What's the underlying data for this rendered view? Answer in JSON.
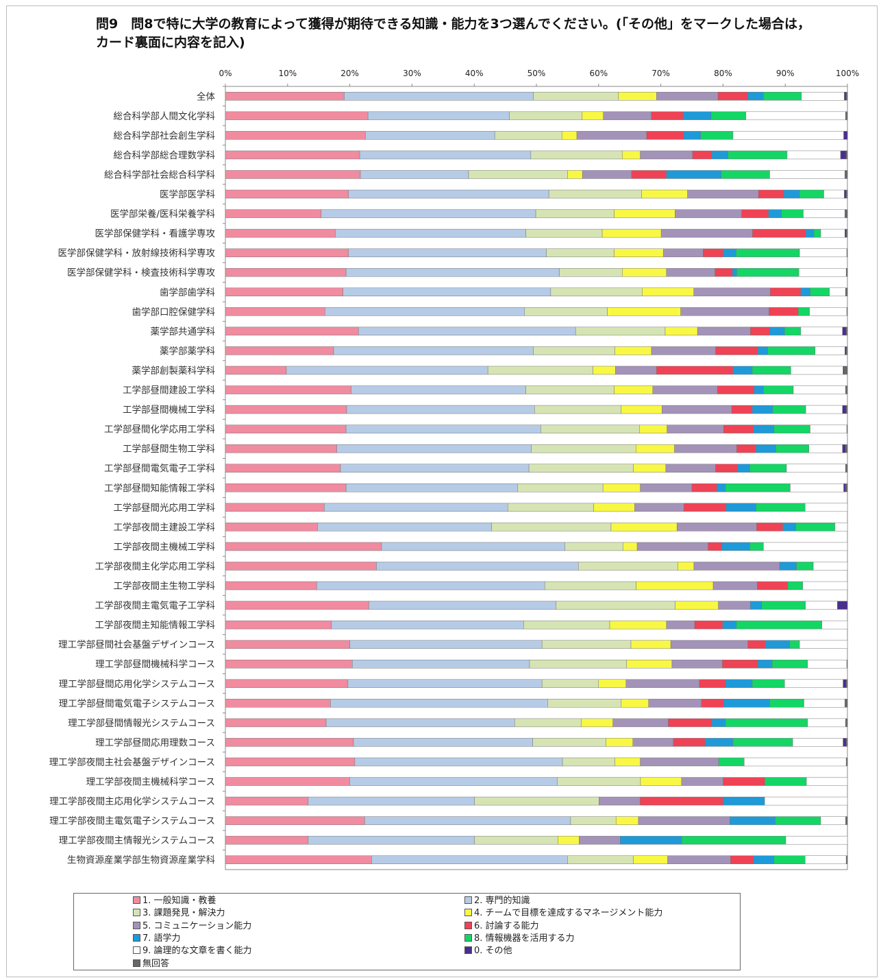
{
  "title": "問9　問8で特に大学の教育によって獲得が期待できる知識・能力を3つ選んでください。(「その他」をマークした場合は，\nカード裏面に内容を記入)",
  "chart_data": {
    "type": "bar",
    "orientation": "horizontal",
    "stacked": "percent",
    "title": "問9　問8で特に大学の教育によって獲得が期待できる知識・能力を3つ選んでください。(「その他」をマークした場合は，カード裏面に内容を記入)",
    "xlim": [
      0,
      100
    ],
    "x_ticks": [
      "0%",
      "10%",
      "20%",
      "30%",
      "40%",
      "50%",
      "60%",
      "70%",
      "80%",
      "90%",
      "100%"
    ],
    "grid": false,
    "legend_position": "bottom",
    "categories": [
      "全体",
      "総合科学部人間文化学科",
      "総合科学部社会創生学科",
      "総合科学部総合理数学科",
      "総合科学部社会総合科学科",
      "医学部医学科",
      "医学部栄養/医科栄養学科",
      "医学部保健学科・看護学専攻",
      "医学部保健学科・放射線技術科学専攻",
      "医学部保健学科・検査技術科学専攻",
      "歯学部歯学科",
      "歯学部口腔保健学科",
      "薬学部共通学科",
      "薬学部薬学科",
      "薬学部創製薬科学科",
      "工学部昼間建設工学科",
      "工学部昼間機械工学科",
      "工学部昼間化学応用工学科",
      "工学部昼間生物工学科",
      "工学部昼間電気電子工学科",
      "工学部昼間知能情報工学科",
      "工学部昼間光応用工学科",
      "工学部夜間主建設工学科",
      "工学部夜間主機械工学科",
      "工学部夜間主化学応用工学科",
      "工学部夜間主生物工学科",
      "工学部夜間主電気電子工学科",
      "工学部夜間主知能情報工学科",
      "理工学部昼間社会基盤デザインコース",
      "理工学部昼間機械科学コース",
      "理工学部昼間応用化学システムコース",
      "理工学部昼間電気電子システムコース",
      "理工学部昼間情報光システムコース",
      "理工学部昼間応用理数コース",
      "理工学部夜間主社会基盤デザインコース",
      "理工学部夜間主機械科学コース",
      "理工学部夜間主応用化学システムコース",
      "理工学部夜間主電気電子システムコース",
      "理工学部夜間主情報光システムコース",
      "生物資源産業学部生物資源産業学科"
    ],
    "series": [
      {
        "name": "1. 一般知識・教養",
        "color": "#f08ba0",
        "values": [
          19.1,
          22.9,
          22.5,
          21.6,
          21.7,
          19.8,
          15.4,
          17.7,
          19.8,
          19.4,
          18.9,
          16.0,
          21.4,
          17.4,
          9.8,
          20.2,
          19.5,
          19.4,
          17.9,
          18.5,
          19.4,
          15.9,
          14.8,
          25.1,
          24.3,
          14.7,
          22.9,
          17.0,
          20.0,
          20.4,
          19.7,
          16.9,
          16.2,
          20.6,
          20.8,
          20.0,
          13.3,
          22.4,
          13.3,
          23.5
        ]
      },
      {
        "name": "2. 専門的知識",
        "color": "#b6cbe6",
        "values": [
          30.4,
          22.7,
          20.8,
          27.5,
          17.4,
          32.2,
          34.5,
          30.7,
          31.8,
          34.3,
          33.4,
          32.1,
          34.9,
          32.1,
          32.4,
          28.1,
          30.2,
          31.3,
          31.3,
          30.3,
          27.6,
          29.5,
          28.0,
          29.5,
          32.5,
          36.7,
          29.9,
          30.8,
          30.9,
          28.5,
          31.2,
          35.0,
          30.3,
          28.8,
          33.4,
          33.4,
          26.7,
          33.1,
          26.7,
          31.5
        ]
      },
      {
        "name": "3. 課題発見・解決力",
        "color": "#d6e4b4",
        "values": [
          13.7,
          11.7,
          10.8,
          14.7,
          15.9,
          14.9,
          12.6,
          12.3,
          10.9,
          10.1,
          14.7,
          13.3,
          14.4,
          13.1,
          16.9,
          14.2,
          13.9,
          15.9,
          16.8,
          16.8,
          13.7,
          13.8,
          19.2,
          9.3,
          16.0,
          14.7,
          19.0,
          13.8,
          14.3,
          15.6,
          9.1,
          11.8,
          10.7,
          11.8,
          8.4,
          13.4,
          20.0,
          7.3,
          13.4,
          10.6
        ]
      },
      {
        "name": "4. チームで目標を達成するマネージメント能力",
        "color": "#f8f844",
        "values": [
          6.1,
          3.4,
          2.4,
          2.9,
          2.4,
          7.4,
          9.8,
          9.5,
          7.9,
          7.1,
          8.3,
          11.8,
          5.2,
          5.9,
          3.6,
          6.2,
          6.6,
          4.4,
          6.2,
          5.2,
          6.0,
          6.6,
          10.6,
          2.3,
          2.6,
          12.4,
          6.9,
          9.1,
          6.4,
          7.3,
          4.4,
          4.4,
          5.1,
          4.3,
          4.1,
          6.6,
          0.0,
          3.6,
          3.4,
          5.5
        ]
      },
      {
        "name": "5. コミュニケーション能力",
        "color": "#a493b8",
        "values": [
          9.9,
          7.7,
          11.2,
          8.4,
          7.9,
          11.4,
          10.7,
          14.7,
          6.4,
          7.8,
          12.3,
          14.2,
          8.5,
          10.3,
          6.6,
          10.4,
          11.2,
          9.1,
          10.0,
          8.0,
          8.3,
          7.9,
          12.8,
          11.4,
          13.8,
          7.1,
          5.1,
          4.5,
          12.4,
          8.1,
          11.8,
          8.5,
          8.9,
          6.5,
          12.6,
          6.7,
          6.6,
          14.7,
          6.6,
          10.1
        ]
      },
      {
        "name": "6. 討論する能力",
        "color": "#ef4255",
        "values": [
          4.8,
          5.1,
          6.0,
          3.1,
          5.6,
          4.1,
          4.3,
          8.6,
          3.2,
          2.8,
          4.9,
          4.7,
          3.1,
          6.8,
          12.3,
          5.9,
          3.3,
          4.8,
          3.1,
          3.5,
          4.0,
          6.8,
          4.2,
          2.2,
          0.0,
          4.9,
          0.0,
          4.5,
          2.8,
          5.7,
          4.2,
          3.6,
          7.0,
          5.1,
          0.0,
          6.7,
          13.3,
          0.0,
          0.0,
          3.7
        ]
      },
      {
        "name": "7. 語学力",
        "color": "#1e9ad8",
        "values": [
          2.5,
          4.5,
          2.7,
          2.6,
          8.8,
          2.5,
          2.1,
          1.3,
          2.1,
          0.7,
          1.5,
          0.0,
          2.4,
          1.6,
          3.1,
          1.5,
          3.3,
          3.3,
          3.2,
          2.0,
          1.4,
          4.8,
          2.1,
          4.5,
          2.7,
          0.0,
          1.8,
          2.2,
          3.9,
          2.3,
          4.3,
          7.4,
          2.2,
          4.5,
          0.0,
          0.0,
          6.7,
          7.3,
          9.9,
          3.3
        ]
      },
      {
        "name": "8. 情報機器を活用する力",
        "color": "#13d665",
        "values": [
          6.1,
          5.6,
          5.2,
          9.5,
          7.8,
          3.9,
          3.5,
          1.1,
          10.2,
          10.0,
          3.1,
          1.8,
          2.6,
          7.6,
          6.2,
          4.8,
          5.3,
          5.8,
          5.3,
          5.9,
          10.4,
          7.9,
          6.3,
          2.2,
          2.7,
          2.4,
          7.0,
          13.7,
          1.6,
          5.7,
          5.2,
          5.5,
          13.2,
          9.6,
          4.1,
          6.7,
          0.0,
          7.3,
          16.7,
          5.0
        ]
      },
      {
        "name": "9. 論理的な文章を書く能力",
        "color": "#ffffff",
        "values": [
          6.9,
          16.0,
          17.8,
          8.6,
          12.1,
          3.3,
          6.7,
          3.9,
          7.6,
          7.6,
          2.6,
          6.0,
          6.7,
          4.8,
          8.4,
          8.4,
          5.9,
          5.9,
          5.4,
          9.5,
          8.6,
          6.8,
          2.0,
          13.5,
          5.5,
          7.2,
          5.1,
          4.1,
          7.7,
          6.3,
          9.4,
          6.6,
          6.1,
          8.1,
          16.4,
          6.6,
          13.3,
          4.0,
          9.9,
          6.6
        ]
      },
      {
        "name": "0. その他",
        "color": "#4a2e8e",
        "values": [
          0.3,
          0.1,
          0.6,
          0.9,
          0.1,
          0.3,
          0.1,
          0.2,
          0.0,
          0.0,
          0.1,
          0.0,
          0.6,
          0.2,
          0.2,
          0.1,
          0.6,
          0.0,
          0.5,
          0.1,
          0.3,
          0.0,
          0.0,
          0.0,
          0.0,
          0.0,
          1.6,
          0.0,
          0.0,
          0.0,
          0.5,
          0.1,
          0.1,
          0.5,
          0.0,
          0.0,
          0.0,
          0.0,
          0.0,
          0.0
        ]
      },
      {
        "name": "無回答",
        "color": "#666666",
        "values": [
          0.2,
          0.2,
          0.0,
          0.2,
          0.3,
          0.2,
          0.3,
          0.2,
          0.1,
          0.2,
          0.2,
          0.1,
          0.2,
          0.2,
          0.5,
          0.2,
          0.2,
          0.1,
          0.3,
          0.2,
          0.3,
          0.0,
          0.0,
          0.0,
          0.0,
          0.0,
          0.0,
          0.0,
          0.0,
          0.1,
          0.2,
          0.3,
          0.2,
          0.2,
          0.2,
          0.0,
          0.0,
          0.3,
          0.0,
          0.2
        ]
      }
    ]
  }
}
